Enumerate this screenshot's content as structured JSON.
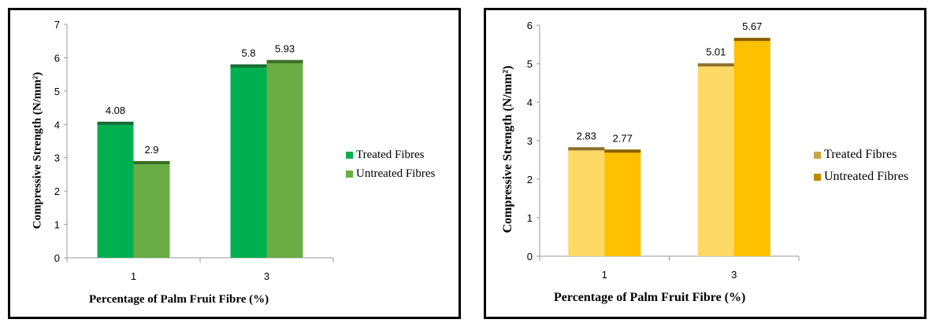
{
  "chart_data": [
    {
      "type": "bar",
      "categories": [
        "1",
        "3"
      ],
      "series": [
        {
          "name": "Treated Fibres",
          "values": [
            4.08,
            5.8
          ],
          "color": "#00b050",
          "top": "#1d6b36"
        },
        {
          "name": "Untreated Fibres",
          "values": [
            2.9,
            5.93
          ],
          "color": "#6aad45",
          "top": "#3a6e26"
        }
      ],
      "data_labels": [
        [
          "4.08",
          "5.8"
        ],
        [
          "2.9",
          "5.93"
        ]
      ],
      "yticks": [
        "0",
        "1",
        "2",
        "3",
        "4",
        "5",
        "6",
        "7"
      ],
      "ylim": [
        0,
        7
      ],
      "xlabel": "Percentage of Palm Fruit Fibre (%)",
      "ylabel": "Compressive Strength (N/mm²)",
      "title": "",
      "grid": false,
      "legend_position": "right"
    },
    {
      "type": "bar",
      "categories": [
        "1",
        "3"
      ],
      "series": [
        {
          "name": "Treated Fibres",
          "values": [
            2.83,
            5.01
          ],
          "color": "#ffd966",
          "top": "#8a7030"
        },
        {
          "name": "Untreated Fibres",
          "values": [
            2.77,
            5.67
          ],
          "color": "#ffc000",
          "top": "#8a6200"
        }
      ],
      "data_labels": [
        [
          "2.83",
          "5.01"
        ],
        [
          "2.77",
          "5.67"
        ]
      ],
      "yticks": [
        "0",
        "1",
        "2",
        "3",
        "4",
        "5",
        "6"
      ],
      "ylim": [
        0,
        6
      ],
      "xlabel": "Percentage of Palm Fruit Fibre (%)",
      "ylabel": "Compressive Strength (N/mm²)",
      "title": "",
      "grid": false,
      "legend_position": "right"
    }
  ]
}
